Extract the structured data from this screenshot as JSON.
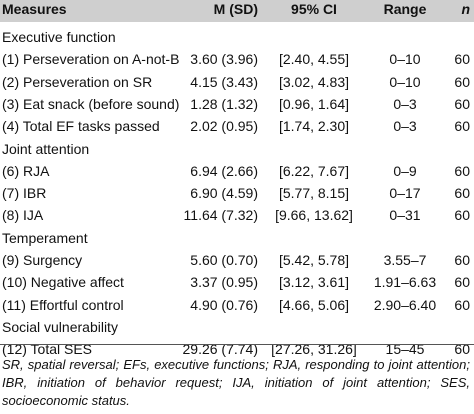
{
  "header": {
    "measures": "Measures",
    "m_sd": "M (SD)",
    "ci": "95% CI",
    "range": "Range",
    "n": "n"
  },
  "sections": [
    {
      "label": "Executive function",
      "rows": [
        {
          "measure": "(1) Perseveration on A-not-B",
          "msd": "3.60 (3.96)",
          "ci": "[2.40, 4.55]",
          "range": "0–10",
          "n": "60"
        },
        {
          "measure": "(2) Perseveration on SR",
          "msd": "4.15 (3.43)",
          "ci": "[3.02, 4.83]",
          "range": "0–10",
          "n": "60"
        },
        {
          "measure": "(3) Eat snack (before sound)",
          "msd": "1.28 (1.32)",
          "ci": "[0.96, 1.64]",
          "range": "0–3",
          "n": "60"
        },
        {
          "measure": "(4) Total EF tasks passed",
          "msd": "2.02 (0.95)",
          "ci": "[1.74, 2.30]",
          "range": "0–3",
          "n": "60"
        }
      ]
    },
    {
      "label": "Joint attention",
      "rows": [
        {
          "measure": "(6) RJA",
          "msd": "6.94 (2.66)",
          "ci": "[6.22, 7.67]",
          "range": "0–9",
          "n": "60"
        },
        {
          "measure": "(7) IBR",
          "msd": "6.90 (4.59)",
          "ci": "[5.77, 8.15]",
          "range": "0–17",
          "n": "60"
        },
        {
          "measure": "(8) IJA",
          "msd": "11.64 (7.32)",
          "ci": "[9.66, 13.62]",
          "range": "0–31",
          "n": "60"
        }
      ]
    },
    {
      "label": "Temperament",
      "rows": [
        {
          "measure": "(9) Surgency",
          "msd": "5.60 (0.70)",
          "ci": "[5.42, 5.78]",
          "range": "3.55–7",
          "n": "60"
        },
        {
          "measure": "(10) Negative affect",
          "msd": "3.37 (0.95)",
          "ci": "[3.12, 3.61]",
          "range": "1.91–6.63",
          "n": "60"
        },
        {
          "measure": "(11) Effortful control",
          "msd": "4.90 (0.76)",
          "ci": "[4.66, 5.06]",
          "range": "2.90–6.40",
          "n": "60"
        }
      ]
    },
    {
      "label": "Social vulnerability",
      "rows": [
        {
          "measure": "(12) Total SES",
          "msd": "29.26 (7.74)",
          "ci": "[27.26, 31.26]",
          "range": "15–45",
          "n": "60"
        }
      ]
    }
  ],
  "footnote": "SR, spatial reversal; EFs, executive functions; RJA, responding to joint attention; IBR, initiation of behavior request; IJA, initiation of joint attention; SES, socioeconomic status."
}
